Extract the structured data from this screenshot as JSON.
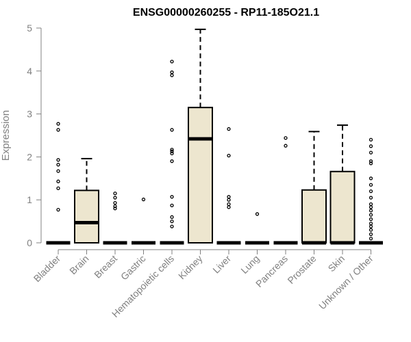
{
  "chart_data": {
    "type": "boxplot",
    "title": "ENSG00000260255 - RP11-185O21.1",
    "ylabel": "Expression",
    "xlabel": "",
    "ylim": [
      0,
      5
    ],
    "yticks": [
      0,
      1,
      2,
      3,
      4,
      5
    ],
    "colors": {
      "box_fill": "#ede6cf",
      "axis": "#808080",
      "stroke": "#000000"
    },
    "categories": [
      "Bladder",
      "Brain",
      "Breast",
      "Gastric",
      "Hematopoietic cells",
      "Kidney",
      "Liver",
      "Lung",
      "Pancreas",
      "Prostate",
      "Skin",
      "Unknown / Other"
    ],
    "boxes": [
      {
        "category": "Bladder",
        "q1": 0,
        "median": 0,
        "q3": 0,
        "whisker_low": 0,
        "whisker_high": 0,
        "outliers": [
          0.77,
          1.27,
          1.43,
          1.67,
          1.82,
          1.93,
          2.63,
          2.77
        ]
      },
      {
        "category": "Brain",
        "q1": 0,
        "median": 0.47,
        "q3": 1.22,
        "whisker_low": 0,
        "whisker_high": 1.96,
        "outliers": []
      },
      {
        "category": "Breast",
        "q1": 0,
        "median": 0,
        "q3": 0,
        "whisker_low": 0,
        "whisker_high": 0,
        "outliers": [
          0.8,
          0.85,
          0.93,
          1.05,
          1.15
        ]
      },
      {
        "category": "Gastric",
        "q1": 0,
        "median": 0,
        "q3": 0,
        "whisker_low": 0,
        "whisker_high": 0,
        "outliers": [
          1.01
        ]
      },
      {
        "category": "Hematopoietic cells",
        "q1": 0,
        "median": 0,
        "q3": 0,
        "whisker_low": 0,
        "whisker_high": 0,
        "outliers": [
          0.38,
          0.5,
          0.6,
          0.87,
          1.07,
          1.9,
          2.08,
          2.13,
          2.17,
          2.63,
          3.9,
          3.97,
          4.22
        ]
      },
      {
        "category": "Kidney",
        "q1": 0,
        "median": 2.42,
        "q3": 3.15,
        "whisker_low": 0,
        "whisker_high": 4.97,
        "outliers": []
      },
      {
        "category": "Liver",
        "q1": 0,
        "median": 0,
        "q3": 0,
        "whisker_low": 0,
        "whisker_high": 0,
        "outliers": [
          0.83,
          0.9,
          1.0,
          1.07,
          2.03,
          2.65
        ]
      },
      {
        "category": "Lung",
        "q1": 0,
        "median": 0,
        "q3": 0,
        "whisker_low": 0,
        "whisker_high": 0,
        "outliers": [
          0.67
        ]
      },
      {
        "category": "Pancreas",
        "q1": 0,
        "median": 0,
        "q3": 0,
        "whisker_low": 0,
        "whisker_high": 0,
        "outliers": [
          2.26,
          2.44
        ]
      },
      {
        "category": "Prostate",
        "q1": 0,
        "median": 0,
        "q3": 1.23,
        "whisker_low": 0,
        "whisker_high": 2.59,
        "outliers": []
      },
      {
        "category": "Skin",
        "q1": 0,
        "median": 0,
        "q3": 1.66,
        "whisker_low": 0,
        "whisker_high": 2.74,
        "outliers": []
      },
      {
        "category": "Unknown / Other",
        "q1": 0,
        "median": 0,
        "q3": 0,
        "whisker_low": 0,
        "whisker_high": 0,
        "outliers": [
          0.1,
          0.2,
          0.3,
          0.38,
          0.45,
          0.55,
          0.65,
          0.75,
          0.83,
          0.9,
          1.05,
          1.2,
          1.35,
          1.5,
          1.85,
          1.9,
          2.1,
          2.25,
          2.4
        ]
      }
    ]
  }
}
